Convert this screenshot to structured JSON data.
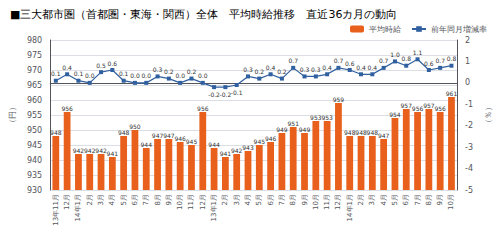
{
  "chart_data": {
    "type": "bar",
    "title": "■三大都市圏（首都圏・東海・関西）全体　平均時給推移　直近36カ月の動向",
    "ylabel": "（円）",
    "y2label": "（％）",
    "categories": [
      "13年11月",
      "12月",
      "14年1月",
      "2月",
      "3月",
      "4月",
      "5月",
      "6月",
      "7月",
      "8月",
      "9月",
      "10月",
      "11月",
      "12月",
      "13年1月",
      "2月",
      "3月",
      "4月",
      "5月",
      "6月",
      "7月",
      "8月",
      "9月",
      "10月",
      "11月",
      "12月",
      "14年1月",
      "2月",
      "3月",
      "4月",
      "5月",
      "6月",
      "7月",
      "8月",
      "9月",
      "10月"
    ],
    "series": [
      {
        "name": "平均時給",
        "type": "bar",
        "color": "#E8601C",
        "values": [
          948,
          956,
          942,
          942,
          942,
          941,
          948,
          950,
          944,
          947,
          947,
          946,
          945,
          956,
          944,
          941,
          942,
          943,
          945,
          946,
          949,
          951,
          949,
          953,
          953,
          959,
          948,
          948,
          948,
          947,
          954,
          957,
          956,
          957,
          956,
          961
        ]
      },
      {
        "name": "前年同月増減率",
        "type": "line",
        "axis": "y2",
        "color": "#3060A0",
        "marker": "square",
        "values": [
          0.1,
          0.4,
          0.1,
          0.0,
          0.5,
          0.6,
          0.1,
          0.0,
          0.0,
          0.3,
          0.2,
          0.0,
          0.2,
          0.0,
          -0.2,
          -0.2,
          -0.1,
          0.3,
          0.2,
          0.4,
          0.2,
          0.7,
          0.3,
          0.3,
          0.4,
          0.7,
          0.6,
          0.4,
          0.4,
          0.7,
          1.0,
          0.8,
          1.1,
          0.6,
          0.7,
          0.8
        ],
        "value_labels": [
          "0.1",
          "0.4",
          "0.1",
          "0.0",
          "0.5",
          "0.6",
          "0.1",
          "0.0",
          "0.0",
          "0.3",
          "0.2",
          "0.0",
          "0.2",
          "0.0",
          "-0.2",
          "-0.2",
          "-0.1",
          "0.3",
          "0.2",
          "0.4",
          "0.2",
          "0.7",
          "0.3",
          "0.3",
          "0.4",
          "0.7",
          "0.6",
          "0.4",
          "0.4",
          "0.7",
          "1.0",
          "0.8",
          "1.1",
          "0.6",
          "0.7",
          "0.8"
        ]
      }
    ],
    "ylim": [
      930,
      980
    ],
    "yticks": [
      930,
      935,
      940,
      945,
      950,
      955,
      960,
      965,
      970,
      975,
      980
    ],
    "y2lim": [
      -5.0,
      2.0
    ],
    "y2ticks": [
      -5.0,
      -4.0,
      -3.0,
      -2.0,
      -1.0,
      0.0,
      1.0,
      2.0
    ],
    "grid": true,
    "legend": "upper right",
    "data_labels": true
  }
}
